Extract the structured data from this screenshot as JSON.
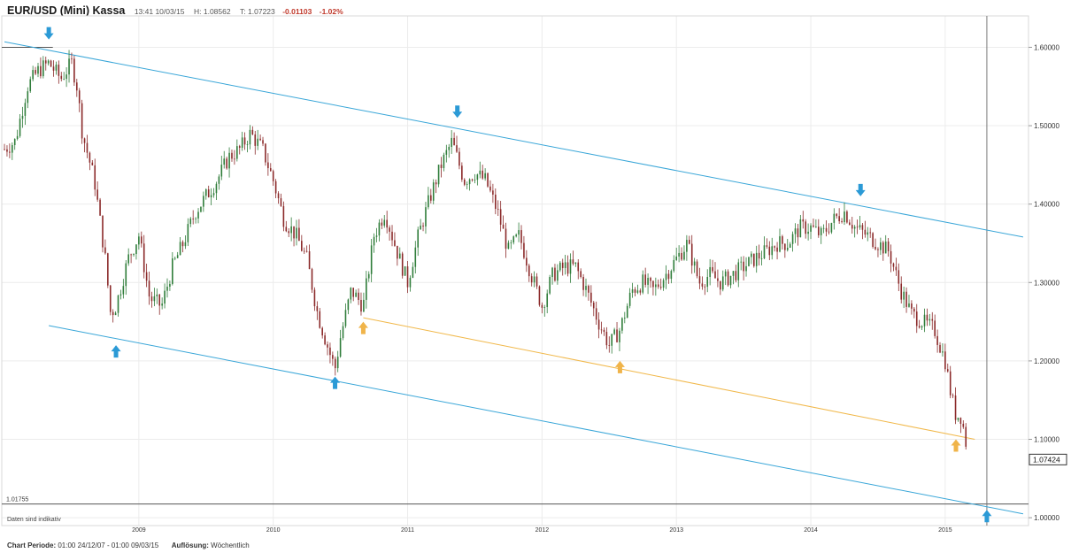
{
  "header": {
    "title": "EUR/USD (Mini) Kassa",
    "time": "13:41 10/03/15",
    "high": "H: 1.08562",
    "close": "T: 1.07223",
    "change": "-0.01103",
    "change_pct": "-1.02%"
  },
  "footer": {
    "period_label": "Chart Periode:",
    "period_value": "01:00 24/12/07 - 01:00 09/03/15",
    "resolution_label": "Auflösung:",
    "resolution_value": "Wöchentlich"
  },
  "notice": "Daten sind indikativ",
  "colors": {
    "channel": "#39a6d8",
    "support": "#f1b84a",
    "arrow_blue": "#2b9ad6",
    "arrow_orange": "#f0b44a",
    "up_candle": "#2f7d3a",
    "down_candle": "#8b2a2a"
  },
  "chart_data": {
    "type": "line",
    "title": "EUR/USD (Mini) Kassa",
    "xlabel": "",
    "ylabel": "",
    "xlim": [
      2007.98,
      2015.62
    ],
    "ylim": [
      0.99,
      1.64
    ],
    "x_ticks": [
      "2009",
      "2010",
      "2011",
      "2012",
      "2013",
      "2014",
      "2015"
    ],
    "y_ticks": [
      "1.00000",
      "1.10000",
      "1.20000",
      "1.30000",
      "1.40000",
      "1.50000",
      "1.60000"
    ],
    "last_price": "1.07424",
    "reference_level": {
      "value": 1.01755,
      "label": "1.01755"
    },
    "series": [
      {
        "name": "EUR/USD weekly close (approx.)",
        "x": [
          2008.0,
          2008.08,
          2008.17,
          2008.25,
          2008.33,
          2008.42,
          2008.5,
          2008.54,
          2008.58,
          2008.67,
          2008.75,
          2008.79,
          2008.83,
          2008.92,
          2009.0,
          2009.08,
          2009.17,
          2009.25,
          2009.33,
          2009.42,
          2009.5,
          2009.58,
          2009.67,
          2009.75,
          2009.83,
          2009.92,
          2010.0,
          2010.08,
          2010.17,
          2010.25,
          2010.33,
          2010.42,
          2010.46,
          2010.5,
          2010.58,
          2010.67,
          2010.75,
          2010.83,
          2010.92,
          2011.0,
          2011.08,
          2011.17,
          2011.25,
          2011.33,
          2011.42,
          2011.5,
          2011.58,
          2011.67,
          2011.75,
          2011.83,
          2011.92,
          2012.0,
          2012.08,
          2012.17,
          2012.25,
          2012.33,
          2012.42,
          2012.5,
          2012.58,
          2012.67,
          2012.75,
          2012.83,
          2012.92,
          2013.0,
          2013.08,
          2013.17,
          2013.25,
          2013.33,
          2013.42,
          2013.5,
          2013.58,
          2013.67,
          2013.75,
          2013.83,
          2013.92,
          2014.0,
          2014.08,
          2014.17,
          2014.25,
          2014.33,
          2014.42,
          2014.5,
          2014.58,
          2014.67,
          2014.75,
          2014.83,
          2014.92,
          2015.0,
          2015.04,
          2015.08,
          2015.12,
          2015.17
        ],
        "values": [
          1.47,
          1.48,
          1.55,
          1.57,
          1.58,
          1.56,
          1.58,
          1.55,
          1.49,
          1.43,
          1.33,
          1.26,
          1.27,
          1.33,
          1.36,
          1.28,
          1.27,
          1.32,
          1.35,
          1.39,
          1.41,
          1.43,
          1.46,
          1.47,
          1.49,
          1.47,
          1.43,
          1.38,
          1.36,
          1.33,
          1.26,
          1.21,
          1.19,
          1.23,
          1.29,
          1.27,
          1.36,
          1.39,
          1.34,
          1.3,
          1.36,
          1.41,
          1.45,
          1.48,
          1.43,
          1.44,
          1.43,
          1.39,
          1.34,
          1.36,
          1.31,
          1.27,
          1.31,
          1.32,
          1.32,
          1.29,
          1.25,
          1.22,
          1.24,
          1.29,
          1.3,
          1.29,
          1.31,
          1.33,
          1.35,
          1.3,
          1.31,
          1.3,
          1.31,
          1.32,
          1.33,
          1.34,
          1.35,
          1.35,
          1.37,
          1.37,
          1.36,
          1.38,
          1.39,
          1.37,
          1.36,
          1.35,
          1.34,
          1.29,
          1.26,
          1.25,
          1.24,
          1.2,
          1.16,
          1.13,
          1.13,
          1.08
        ]
      },
      {
        "name": "Upper channel line",
        "x": [
          2008.0,
          2015.58
        ],
        "values": [
          1.607,
          1.358
        ]
      },
      {
        "name": "Lower channel line",
        "x": [
          2008.33,
          2015.58
        ],
        "values": [
          1.245,
          1.005
        ]
      },
      {
        "name": "Support line (orange)",
        "x": [
          2010.67,
          2015.22
        ],
        "values": [
          1.255,
          1.1
        ]
      }
    ],
    "markers": [
      {
        "dir": "down",
        "color": "blue",
        "x": 2008.33,
        "y": 1.61
      },
      {
        "dir": "up",
        "color": "blue",
        "x": 2008.83,
        "y": 1.22
      },
      {
        "dir": "up",
        "color": "blue",
        "x": 2010.46,
        "y": 1.18
      },
      {
        "dir": "up",
        "color": "orange",
        "x": 2010.67,
        "y": 1.25
      },
      {
        "dir": "down",
        "color": "blue",
        "x": 2011.37,
        "y": 1.51
      },
      {
        "dir": "up",
        "color": "orange",
        "x": 2012.58,
        "y": 1.2
      },
      {
        "dir": "down",
        "color": "blue",
        "x": 2014.37,
        "y": 1.41
      },
      {
        "dir": "up",
        "color": "orange",
        "x": 2015.08,
        "y": 1.1
      },
      {
        "dir": "up",
        "color": "blue",
        "x": 2015.31,
        "y": 1.01
      }
    ]
  }
}
